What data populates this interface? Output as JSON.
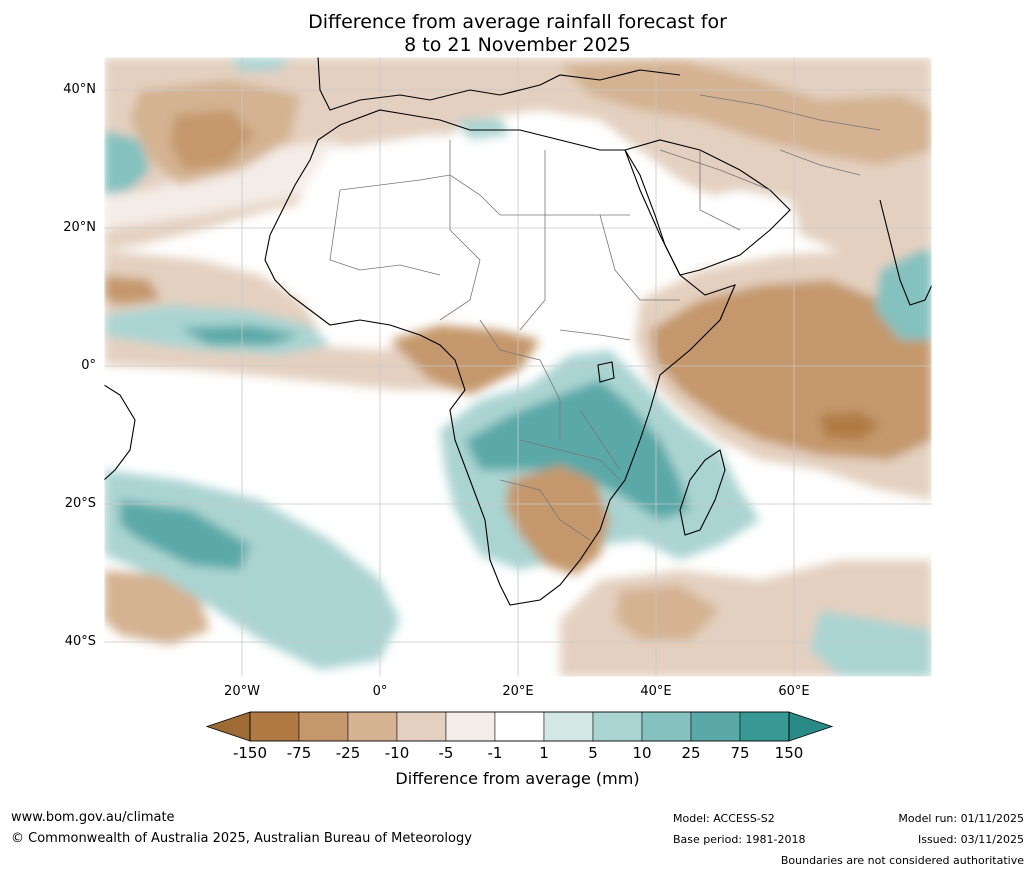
{
  "title": {
    "line1": "Difference from average rainfall forecast for",
    "line2": "8 to 21 November 2025"
  },
  "map": {
    "region": "Africa",
    "lat_ticks": [
      "40°N",
      "20°N",
      "0°",
      "20°S",
      "40°S"
    ],
    "lon_ticks": [
      "20°W",
      "0°",
      "20°E",
      "40°E",
      "60°E"
    ],
    "lon_range_deg": [
      -40,
      80
    ],
    "lat_range_deg": [
      -45,
      45
    ]
  },
  "legend": {
    "title": "Difference from average (mm)",
    "labels": [
      "-150",
      "-75",
      "-25",
      "-10",
      "-5",
      "-1",
      "1",
      "5",
      "10",
      "25",
      "75",
      "150"
    ],
    "colors": [
      "#9e6a36",
      "#b07a45",
      "#c4986c",
      "#d4b292",
      "#e4d0c0",
      "#f4ece7",
      "#ffffff",
      "#d3e7e5",
      "#aad4d2",
      "#84c1bf",
      "#5aa9a8",
      "#379894",
      "#2a8a85"
    ]
  },
  "footer": {
    "website": "www.bom.gov.au/climate",
    "copyright": "© Commonwealth of Australia 2025, Australian Bureau of Meteorology",
    "model": "Model: ACCESS-S2",
    "base_period": "Base period: 1981-2018",
    "model_run": "Model run: 01/11/2025",
    "issued": "Issued: 03/11/2025",
    "disclaimer": "Boundaries are not considered authoritative"
  }
}
